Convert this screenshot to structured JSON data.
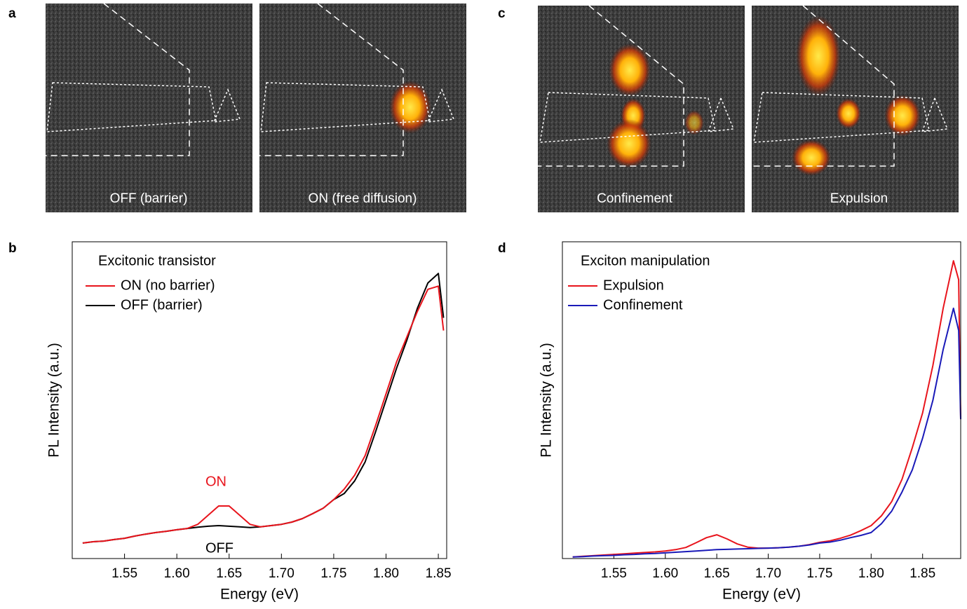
{
  "panels": [
    "a",
    "b",
    "c",
    "d"
  ],
  "images": [
    {
      "label": "OFF (barrier)"
    },
    {
      "label": "ON (free diffusion)"
    },
    {
      "label": "Confinement"
    },
    {
      "label": "Expulsion"
    }
  ],
  "chart_data": [
    {
      "type": "line",
      "legend_title": "Excitonic transistor",
      "xlabel": "Energy (eV)",
      "ylabel": "PL Intensity (a.u.)",
      "xlim": [
        1.5,
        1.858
      ],
      "ylim": [
        0,
        100
      ],
      "xticks": [
        {
          "value": 1.55,
          "label": "1.55"
        },
        {
          "value": 1.6,
          "label": "1.60"
        },
        {
          "value": 1.65,
          "label": "1.65"
        },
        {
          "value": 1.7,
          "label": "1.70"
        },
        {
          "value": 1.75,
          "label": "1.75"
        },
        {
          "value": 1.8,
          "label": "1.80"
        },
        {
          "value": 1.85,
          "label": "1.85"
        }
      ],
      "x": [
        1.51,
        1.52,
        1.53,
        1.54,
        1.55,
        1.56,
        1.57,
        1.58,
        1.59,
        1.6,
        1.61,
        1.62,
        1.63,
        1.64,
        1.65,
        1.66,
        1.67,
        1.68,
        1.69,
        1.7,
        1.71,
        1.72,
        1.73,
        1.74,
        1.75,
        1.76,
        1.77,
        1.78,
        1.79,
        1.8,
        1.81,
        1.82,
        1.83,
        1.84,
        1.85,
        1.855
      ],
      "series": [
        {
          "name": "OFF (barrier)",
          "color": "#000000",
          "values": [
            4.9,
            5.3,
            5.5,
            6.0,
            6.4,
            7.1,
            7.7,
            8.2,
            8.6,
            9.1,
            9.5,
            9.9,
            10.2,
            10.4,
            10.2,
            10.0,
            9.8,
            10.0,
            10.4,
            10.8,
            11.5,
            12.6,
            14.2,
            15.9,
            18.6,
            20.5,
            24.5,
            30.5,
            40,
            50,
            60,
            69,
            79,
            87,
            90,
            76
          ]
        },
        {
          "name": "ON (no barrier)",
          "color": "#e8141c",
          "values": [
            4.9,
            5.3,
            5.5,
            6.0,
            6.4,
            7.1,
            7.7,
            8.2,
            8.6,
            9.1,
            9.5,
            10.8,
            13.7,
            16.6,
            16.6,
            13.7,
            10.8,
            10.0,
            10.4,
            10.8,
            11.5,
            12.6,
            14.2,
            15.9,
            18.6,
            21.9,
            26.3,
            32.5,
            42,
            52,
            62,
            70,
            78,
            85,
            86,
            72
          ]
        }
      ],
      "legend_order": [
        1,
        0
      ],
      "annotations": [
        {
          "text": "ON",
          "color": "#e8141c"
        },
        {
          "text": "OFF",
          "color": "#000000"
        }
      ]
    },
    {
      "type": "line",
      "legend_title": "Exciton manipulation",
      "xlabel": "Energy (eV)",
      "ylabel": "PL Intensity (a.u.)",
      "xlim": [
        1.5,
        1.887
      ],
      "ylim": [
        0,
        100
      ],
      "xticks": [
        {
          "value": 1.55,
          "label": "1.55"
        },
        {
          "value": 1.6,
          "label": "1.60"
        },
        {
          "value": 1.65,
          "label": "1.65"
        },
        {
          "value": 1.7,
          "label": "1.70"
        },
        {
          "value": 1.75,
          "label": "1.75"
        },
        {
          "value": 1.8,
          "label": "1.80"
        },
        {
          "value": 1.85,
          "label": "1.85"
        }
      ],
      "x": [
        1.51,
        1.52,
        1.53,
        1.54,
        1.55,
        1.56,
        1.57,
        1.58,
        1.59,
        1.6,
        1.61,
        1.62,
        1.63,
        1.64,
        1.65,
        1.66,
        1.67,
        1.68,
        1.69,
        1.7,
        1.71,
        1.72,
        1.73,
        1.74,
        1.75,
        1.76,
        1.77,
        1.78,
        1.79,
        1.8,
        1.81,
        1.82,
        1.83,
        1.84,
        1.85,
        1.86,
        1.87,
        1.88,
        1.885,
        1.887
      ],
      "series": [
        {
          "name": "Expulsion",
          "color": "#e8141c",
          "values": [
            0.5,
            0.7,
            0.9,
            1.1,
            1.3,
            1.5,
            1.7,
            1.9,
            2.1,
            2.4,
            2.8,
            3.5,
            5.0,
            6.6,
            7.5,
            6.2,
            4.6,
            3.6,
            3.3,
            3.3,
            3.4,
            3.6,
            3.9,
            4.4,
            5.1,
            5.6,
            6.4,
            7.4,
            8.8,
            10.4,
            13.5,
            18,
            25,
            35,
            46,
            61,
            79,
            94,
            88,
            44
          ]
        },
        {
          "name": "Confinement",
          "color": "#1a1ab8",
          "values": [
            0.5,
            0.6,
            0.8,
            0.9,
            1.0,
            1.2,
            1.3,
            1.5,
            1.6,
            1.8,
            2.0,
            2.2,
            2.4,
            2.6,
            2.8,
            2.9,
            3.0,
            3.1,
            3.2,
            3.3,
            3.4,
            3.6,
            3.9,
            4.3,
            4.9,
            5.2,
            5.8,
            6.6,
            7.3,
            8.2,
            11,
            15,
            21,
            28,
            38,
            50,
            66,
            79,
            72,
            44
          ]
        }
      ],
      "legend_order": [
        0,
        1
      ]
    }
  ]
}
